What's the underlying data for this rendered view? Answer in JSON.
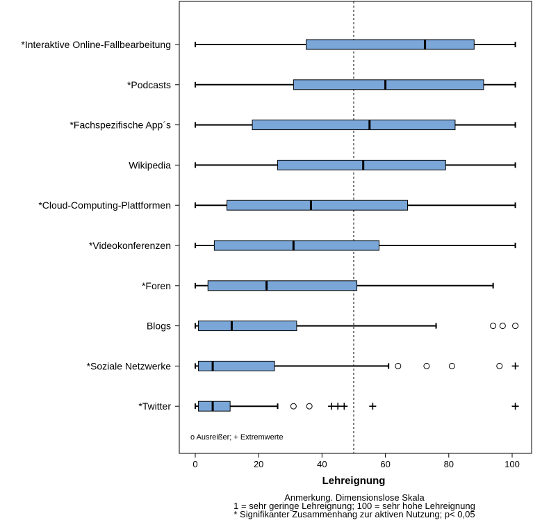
{
  "chart_data": {
    "type": "boxplot",
    "orientation": "horizontal",
    "xlabel": "Lehreignung",
    "xlim": [
      -2,
      103
    ],
    "xticks": [
      0,
      20,
      40,
      60,
      80,
      100
    ],
    "reference_line": 50,
    "box_color": "#7aa6d8",
    "legend_text": "o Ausreißer; + Extremwerte",
    "categories": [
      {
        "label": "*Interaktive Online-Fallbearbeitung",
        "whisker_low": 0,
        "q1": 35,
        "median": 72.5,
        "q3": 88,
        "whisker_high": 101,
        "outliers": [],
        "extremes": []
      },
      {
        "label": "*Podcasts",
        "whisker_low": 0,
        "q1": 31,
        "median": 60,
        "q3": 91,
        "whisker_high": 101,
        "outliers": [],
        "extremes": []
      },
      {
        "label": "*Fachspezifische App´s",
        "whisker_low": 0,
        "q1": 18,
        "median": 55,
        "q3": 82,
        "whisker_high": 101,
        "outliers": [],
        "extremes": []
      },
      {
        "label": "Wikipedia",
        "whisker_low": 0,
        "q1": 26,
        "median": 53,
        "q3": 79,
        "whisker_high": 101,
        "outliers": [],
        "extremes": []
      },
      {
        "label": "*Cloud-Computing-Plattformen",
        "whisker_low": 0,
        "q1": 10,
        "median": 36.5,
        "q3": 67,
        "whisker_high": 101,
        "outliers": [],
        "extremes": []
      },
      {
        "label": "*Videokonferenzen",
        "whisker_low": 0,
        "q1": 6,
        "median": 31,
        "q3": 58,
        "whisker_high": 101,
        "outliers": [],
        "extremes": []
      },
      {
        "label": "*Foren",
        "whisker_low": 0,
        "q1": 4,
        "median": 22.5,
        "q3": 51,
        "whisker_high": 94,
        "outliers": [],
        "extremes": []
      },
      {
        "label": "Blogs",
        "whisker_low": 0,
        "q1": 1,
        "median": 11.5,
        "q3": 32,
        "whisker_high": 76,
        "outliers": [
          94,
          97,
          101
        ],
        "extremes": []
      },
      {
        "label": "*Soziale Netzwerke",
        "whisker_low": 0,
        "q1": 1,
        "median": 5.5,
        "q3": 25,
        "whisker_high": 61,
        "outliers": [
          64,
          73,
          81,
          96
        ],
        "extremes": [
          101
        ]
      },
      {
        "label": "*Twitter",
        "whisker_low": 0,
        "q1": 1,
        "median": 5.5,
        "q3": 11,
        "whisker_high": 26,
        "outliers": [
          31,
          36
        ],
        "extremes": [
          43,
          45,
          47,
          56,
          101
        ]
      }
    ],
    "notes": [
      "Anmerkung. Dimensionslose Skala",
      "1 = sehr geringe Lehreignung; 100 = sehr hohe Lehreignung",
      "* Signifikanter Zusammenhang zur aktiven Nutzung; p< 0,05"
    ]
  }
}
